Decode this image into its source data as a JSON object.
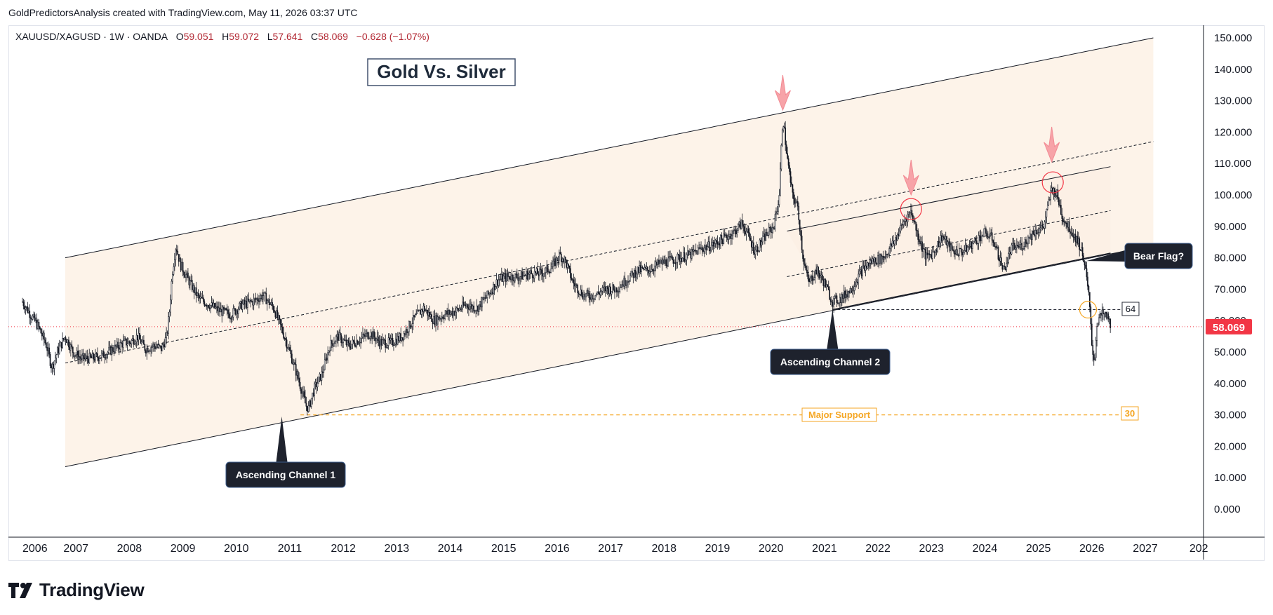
{
  "credit": "GoldPredictorsAnalysis created with TradingView.com, May 11, 2026 03:37 UTC",
  "symbol": {
    "name": "XAUUSD/XAGUSD · 1W · OANDA",
    "open_label": "O",
    "open": "59.051",
    "high_label": "H",
    "high": "59.072",
    "low_label": "L",
    "low": "57.641",
    "close_label": "C",
    "close": "58.069",
    "change": "−0.628 (−1.07%)"
  },
  "logo_text": "TradingView",
  "colors": {
    "candle": "#131722",
    "channel_fill": "#fcefe2",
    "channel_line": "#131722",
    "support": "#f5a623",
    "price_tag": "#f23645",
    "arrow": "#f7a3a8",
    "circle_red": "#f23645",
    "circle_orange": "#f5a623",
    "callout_bg": "#1e222d"
  },
  "chart_data": {
    "type": "candlestick",
    "title": "Gold Vs. Silver",
    "x_ticks": [
      "2006",
      "2007",
      "2008",
      "2009",
      "2010",
      "2011",
      "2012",
      "2013",
      "2014",
      "2015",
      "2016",
      "2017",
      "2018",
      "2019",
      "2020",
      "2021",
      "2022",
      "2023",
      "2024",
      "2025",
      "2026",
      "2027",
      "202"
    ],
    "y_ticks": [
      "150.000",
      "140.000",
      "130.000",
      "120.000",
      "110.000",
      "100.000",
      "90.000",
      "80.000",
      "70.000",
      "60.000",
      "50.000",
      "40.000",
      "30.000",
      "20.000",
      "10.000",
      "0.000"
    ],
    "ylim": [
      -5,
      155
    ],
    "xlim": [
      2006.0,
      2028.3
    ],
    "last_price": "58.069",
    "series": [
      {
        "x": 2006.0,
        "y": 66
      },
      {
        "x": 2006.15,
        "y": 62
      },
      {
        "x": 2006.3,
        "y": 58
      },
      {
        "x": 2006.45,
        "y": 52
      },
      {
        "x": 2006.55,
        "y": 45
      },
      {
        "x": 2006.65,
        "y": 50
      },
      {
        "x": 2006.8,
        "y": 55
      },
      {
        "x": 2006.95,
        "y": 50
      },
      {
        "x": 2007.1,
        "y": 48
      },
      {
        "x": 2007.3,
        "y": 48
      },
      {
        "x": 2007.5,
        "y": 49
      },
      {
        "x": 2007.7,
        "y": 51
      },
      {
        "x": 2007.9,
        "y": 53
      },
      {
        "x": 2008.0,
        "y": 53
      },
      {
        "x": 2008.15,
        "y": 55
      },
      {
        "x": 2008.3,
        "y": 51
      },
      {
        "x": 2008.45,
        "y": 52
      },
      {
        "x": 2008.6,
        "y": 51
      },
      {
        "x": 2008.7,
        "y": 55
      },
      {
        "x": 2008.75,
        "y": 63
      },
      {
        "x": 2008.8,
        "y": 75
      },
      {
        "x": 2008.87,
        "y": 84
      },
      {
        "x": 2008.95,
        "y": 78
      },
      {
        "x": 2009.1,
        "y": 73
      },
      {
        "x": 2009.3,
        "y": 67
      },
      {
        "x": 2009.5,
        "y": 65
      },
      {
        "x": 2009.7,
        "y": 63
      },
      {
        "x": 2009.9,
        "y": 62
      },
      {
        "x": 2010.1,
        "y": 65
      },
      {
        "x": 2010.3,
        "y": 66
      },
      {
        "x": 2010.5,
        "y": 68
      },
      {
        "x": 2010.7,
        "y": 64
      },
      {
        "x": 2010.9,
        "y": 55
      },
      {
        "x": 2011.0,
        "y": 50
      },
      {
        "x": 2011.15,
        "y": 42
      },
      {
        "x": 2011.3,
        "y": 33
      },
      {
        "x": 2011.35,
        "y": 32
      },
      {
        "x": 2011.45,
        "y": 38
      },
      {
        "x": 2011.6,
        "y": 43
      },
      {
        "x": 2011.75,
        "y": 52
      },
      {
        "x": 2011.9,
        "y": 55
      },
      {
        "x": 2012.1,
        "y": 52
      },
      {
        "x": 2012.3,
        "y": 54
      },
      {
        "x": 2012.5,
        "y": 56
      },
      {
        "x": 2012.7,
        "y": 53
      },
      {
        "x": 2012.9,
        "y": 53
      },
      {
        "x": 2013.1,
        "y": 55
      },
      {
        "x": 2013.3,
        "y": 60
      },
      {
        "x": 2013.5,
        "y": 64
      },
      {
        "x": 2013.7,
        "y": 60
      },
      {
        "x": 2013.9,
        "y": 62
      },
      {
        "x": 2014.1,
        "y": 63
      },
      {
        "x": 2014.3,
        "y": 65
      },
      {
        "x": 2014.5,
        "y": 64
      },
      {
        "x": 2014.7,
        "y": 68
      },
      {
        "x": 2014.9,
        "y": 73
      },
      {
        "x": 2015.1,
        "y": 74
      },
      {
        "x": 2015.3,
        "y": 74
      },
      {
        "x": 2015.5,
        "y": 75
      },
      {
        "x": 2015.7,
        "y": 75
      },
      {
        "x": 2015.9,
        "y": 77
      },
      {
        "x": 2016.05,
        "y": 81
      },
      {
        "x": 2016.15,
        "y": 79
      },
      {
        "x": 2016.3,
        "y": 72
      },
      {
        "x": 2016.5,
        "y": 68
      },
      {
        "x": 2016.7,
        "y": 68
      },
      {
        "x": 2016.9,
        "y": 70
      },
      {
        "x": 2017.1,
        "y": 70
      },
      {
        "x": 2017.3,
        "y": 73
      },
      {
        "x": 2017.5,
        "y": 76
      },
      {
        "x": 2017.7,
        "y": 76
      },
      {
        "x": 2017.9,
        "y": 78
      },
      {
        "x": 2018.1,
        "y": 79
      },
      {
        "x": 2018.3,
        "y": 80
      },
      {
        "x": 2018.5,
        "y": 81
      },
      {
        "x": 2018.7,
        "y": 83
      },
      {
        "x": 2018.9,
        "y": 84
      },
      {
        "x": 2019.1,
        "y": 86
      },
      {
        "x": 2019.3,
        "y": 88
      },
      {
        "x": 2019.45,
        "y": 91
      },
      {
        "x": 2019.55,
        "y": 88
      },
      {
        "x": 2019.7,
        "y": 82
      },
      {
        "x": 2019.9,
        "y": 87
      },
      {
        "x": 2020.05,
        "y": 90
      },
      {
        "x": 2020.15,
        "y": 99
      },
      {
        "x": 2020.22,
        "y": 125
      },
      {
        "x": 2020.3,
        "y": 112
      },
      {
        "x": 2020.4,
        "y": 100
      },
      {
        "x": 2020.5,
        "y": 96
      },
      {
        "x": 2020.6,
        "y": 80
      },
      {
        "x": 2020.7,
        "y": 72
      },
      {
        "x": 2020.85,
        "y": 76
      },
      {
        "x": 2021.0,
        "y": 72
      },
      {
        "x": 2021.15,
        "y": 66
      },
      {
        "x": 2021.3,
        "y": 67
      },
      {
        "x": 2021.5,
        "y": 70
      },
      {
        "x": 2021.7,
        "y": 76
      },
      {
        "x": 2021.9,
        "y": 79
      },
      {
        "x": 2022.1,
        "y": 80
      },
      {
        "x": 2022.3,
        "y": 85
      },
      {
        "x": 2022.5,
        "y": 92
      },
      {
        "x": 2022.62,
        "y": 95
      },
      {
        "x": 2022.75,
        "y": 87
      },
      {
        "x": 2022.9,
        "y": 80
      },
      {
        "x": 2023.05,
        "y": 82
      },
      {
        "x": 2023.2,
        "y": 87
      },
      {
        "x": 2023.4,
        "y": 82
      },
      {
        "x": 2023.6,
        "y": 82
      },
      {
        "x": 2023.8,
        "y": 85
      },
      {
        "x": 2024.0,
        "y": 88
      },
      {
        "x": 2024.15,
        "y": 86
      },
      {
        "x": 2024.35,
        "y": 76
      },
      {
        "x": 2024.5,
        "y": 83
      },
      {
        "x": 2024.7,
        "y": 84
      },
      {
        "x": 2024.9,
        "y": 88
      },
      {
        "x": 2025.1,
        "y": 90
      },
      {
        "x": 2025.25,
        "y": 102
      },
      {
        "x": 2025.35,
        "y": 100
      },
      {
        "x": 2025.45,
        "y": 93
      },
      {
        "x": 2025.6,
        "y": 89
      },
      {
        "x": 2025.75,
        "y": 85
      },
      {
        "x": 2025.85,
        "y": 80
      },
      {
        "x": 2025.95,
        "y": 67
      },
      {
        "x": 2026.0,
        "y": 52
      },
      {
        "x": 2026.05,
        "y": 47
      },
      {
        "x": 2026.1,
        "y": 60
      },
      {
        "x": 2026.2,
        "y": 62
      },
      {
        "x": 2026.3,
        "y": 61
      },
      {
        "x": 2026.36,
        "y": 58
      }
    ],
    "annotations": {
      "title_box": "Gold Vs. Silver",
      "callouts": [
        {
          "text": "Ascending Channel 1",
          "x": 2010.85,
          "y": 29.5
        },
        {
          "text": "Ascending Channel 2",
          "x": 2021.15,
          "y": 63.5
        },
        {
          "text": "Bear Flag?",
          "x": 2025.9,
          "y": 79.0
        }
      ],
      "support_label": "Major Support",
      "support_value": "30",
      "flag_level": "64",
      "channel1": {
        "upper": [
          [
            2006.8,
            80
          ],
          [
            2027.15,
            150
          ]
        ],
        "lower": [
          [
            2006.8,
            13.5
          ],
          [
            2027.15,
            84
          ]
        ],
        "mid": [
          [
            2006.8,
            46.5
          ],
          [
            2027.15,
            117
          ]
        ]
      },
      "channel2": {
        "upper": [
          [
            2020.3,
            88.5
          ],
          [
            2026.35,
            109
          ]
        ],
        "lower": [
          [
            2021.15,
            63.5
          ],
          [
            2026.35,
            81.5
          ]
        ],
        "mid": [
          [
            2020.3,
            74
          ],
          [
            2026.35,
            95
          ]
        ]
      }
    }
  }
}
